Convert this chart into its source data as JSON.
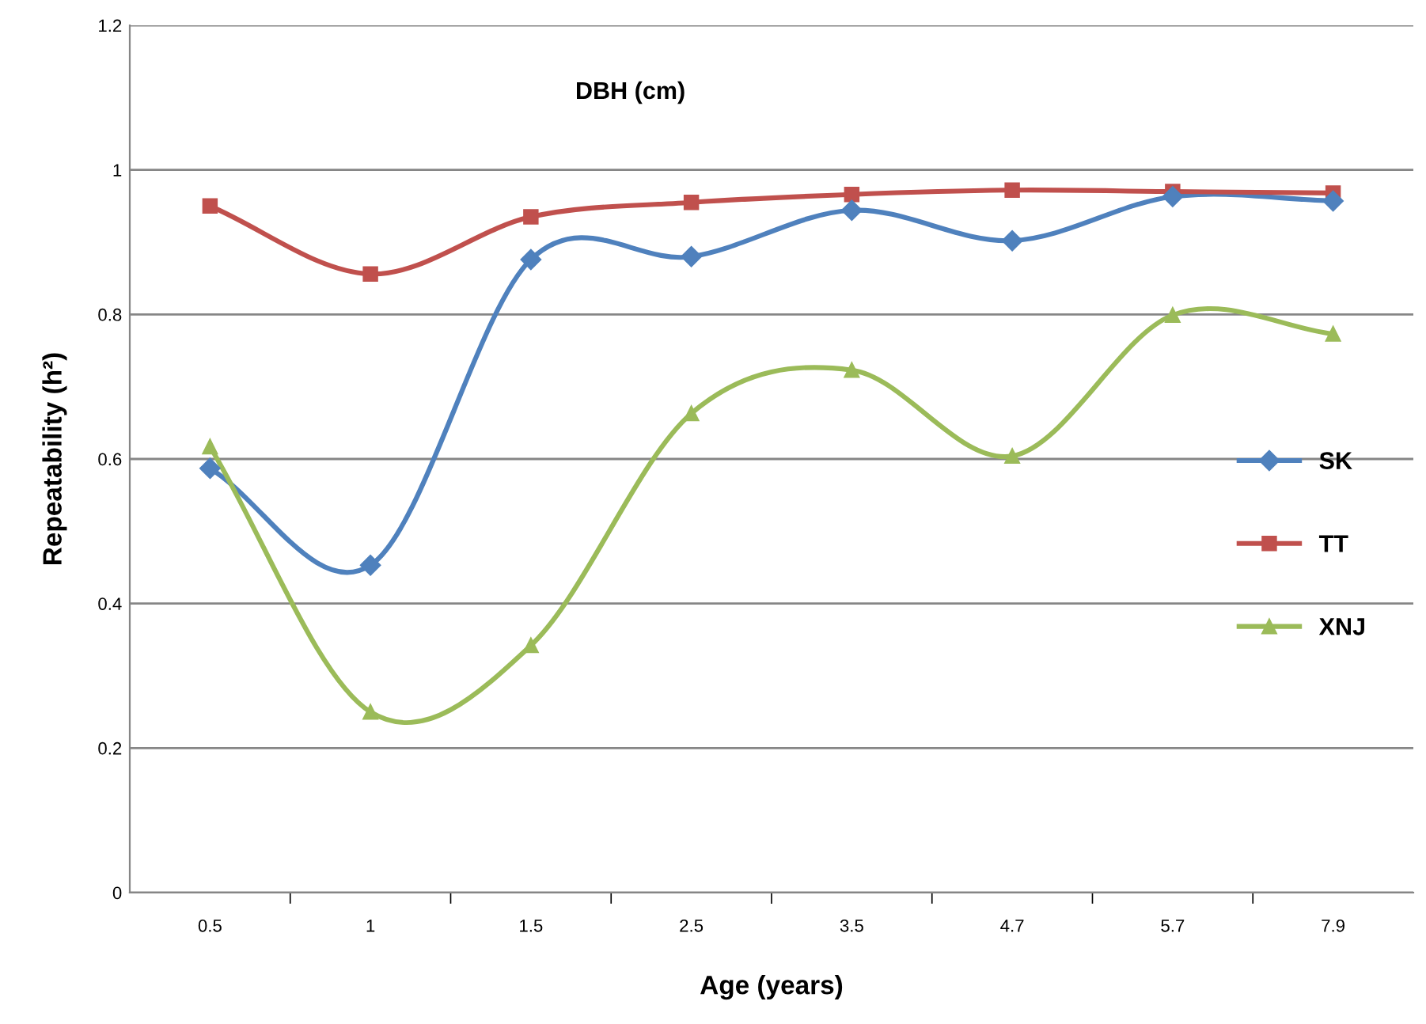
{
  "chart_data": {
    "type": "line",
    "title": "DBH (cm)",
    "xlabel": "Age (years)",
    "ylabel": "Repeatability (h²)",
    "categories": [
      "0.5",
      "1",
      "1.5",
      "2.5",
      "3.5",
      "4.7",
      "5.7",
      "7.9"
    ],
    "series": [
      {
        "name": "SK",
        "color": "#4f81bd",
        "marker": "diamond",
        "values": [
          0.587,
          0.453,
          0.876,
          0.88,
          0.944,
          0.902,
          0.963,
          0.957
        ]
      },
      {
        "name": "TT",
        "color": "#c0504d",
        "marker": "square",
        "values": [
          0.95,
          0.856,
          0.935,
          0.955,
          0.966,
          0.972,
          0.97,
          0.968
        ]
      },
      {
        "name": "XNJ",
        "color": "#9bbb59",
        "marker": "triangle",
        "values": [
          0.617,
          0.25,
          0.342,
          0.663,
          0.723,
          0.604,
          0.799,
          0.773
        ]
      }
    ],
    "ylim": [
      0,
      1.2
    ],
    "yticks": [
      0,
      0.2,
      0.4,
      0.6,
      0.8,
      1,
      1.2
    ],
    "grid": "y",
    "legend": "right",
    "line_style": "solid"
  }
}
